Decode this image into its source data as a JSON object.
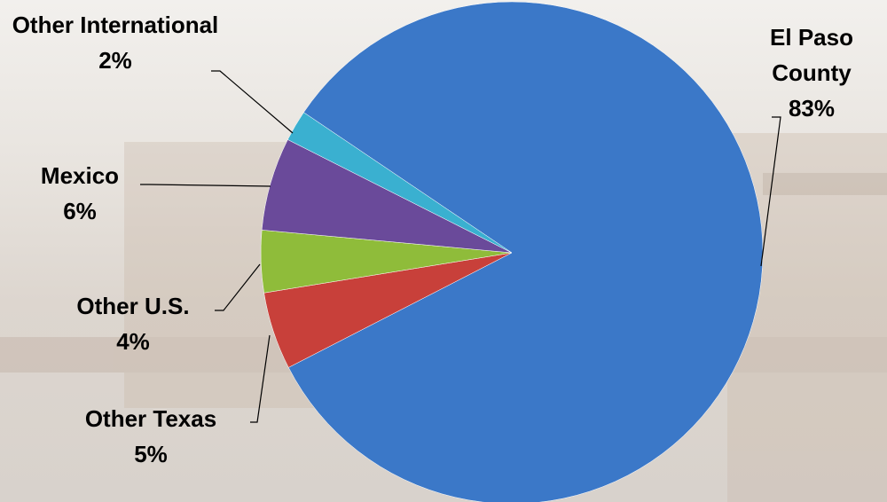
{
  "chart_data": {
    "type": "pie",
    "categories": [
      "El Paso County",
      "Other Texas",
      "Other U.S.",
      "Mexico",
      "Other International"
    ],
    "values": [
      83,
      5,
      4,
      6,
      2
    ],
    "value_labels": [
      "83%",
      "5%",
      "4%",
      "6%",
      "2%"
    ],
    "colors": [
      "#3b78c8",
      "#c8403a",
      "#8fbc3a",
      "#6a4a9a",
      "#3ab0d0"
    ]
  }
}
